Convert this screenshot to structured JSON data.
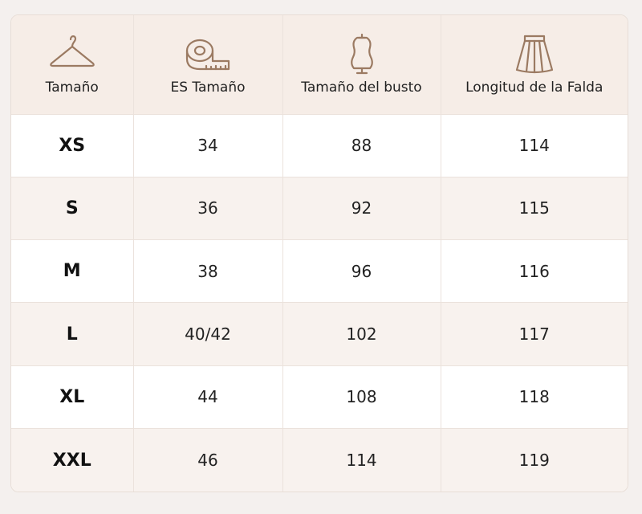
{
  "table": {
    "headers": [
      {
        "label": "Tamaño",
        "icon": "hanger-icon"
      },
      {
        "label": "ES Tamaño",
        "icon": "measuring-tape-icon"
      },
      {
        "label": "Tamaño del busto",
        "icon": "dress-form-icon"
      },
      {
        "label": "Longitud de la Falda",
        "icon": "skirt-icon"
      }
    ],
    "rows": [
      {
        "size": "XS",
        "es": "34",
        "bust": "88",
        "skirt": "114"
      },
      {
        "size": "S",
        "es": "36",
        "bust": "92",
        "skirt": "115"
      },
      {
        "size": "M",
        "es": "38",
        "bust": "96",
        "skirt": "116"
      },
      {
        "size": "L",
        "es": "40/42",
        "bust": "102",
        "skirt": "117"
      },
      {
        "size": "XL",
        "es": "44",
        "bust": "108",
        "skirt": "118"
      },
      {
        "size": "XXL",
        "es": "46",
        "bust": "114",
        "skirt": "119"
      }
    ]
  },
  "colors": {
    "icon_stroke": "#9b7a62",
    "header_bg": "#f6ede7",
    "alt_row_bg": "#f8f2ee"
  }
}
